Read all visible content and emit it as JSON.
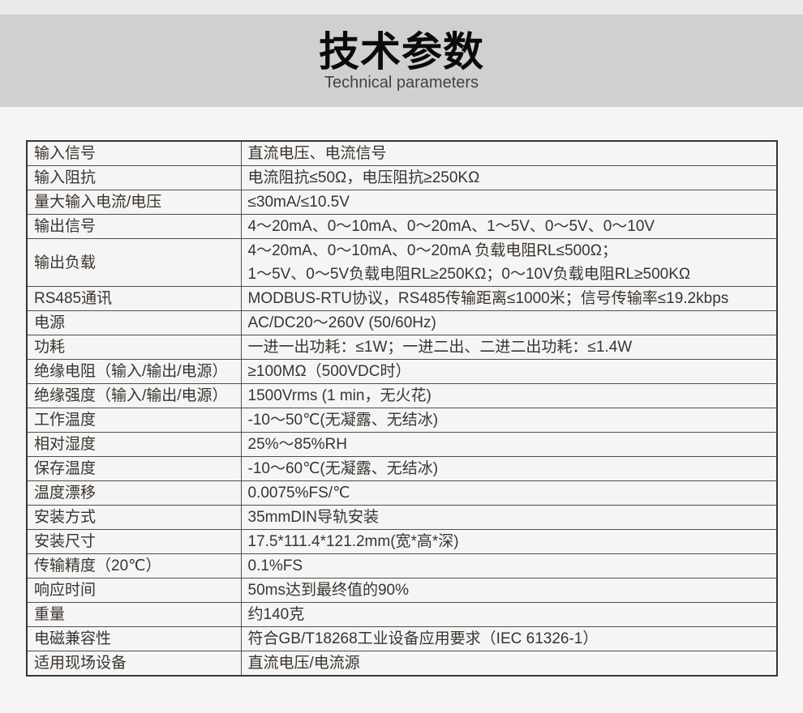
{
  "page": {
    "title": "技术参数",
    "subtitle": "Technical parameters"
  },
  "colors": {
    "page_background": "#f5f5f5",
    "top_strip": "#ebeaea",
    "title_band": "#d1d0d0",
    "title_text": "#0b0b0b",
    "subtitle_text": "#424242",
    "table_border": "#383534",
    "grid_line": "#524d49",
    "cell_text": "#3b342e"
  },
  "spec_table": {
    "rows": [
      {
        "label": "输入信号",
        "value_lines": [
          "直流电压、电流信号"
        ]
      },
      {
        "label": "输入阻抗",
        "value_lines": [
          "电流阻抗≤50Ω，电压阻抗≥250KΩ"
        ]
      },
      {
        "label": "量大输入电流/电压",
        "value_lines": [
          "≤30mA/≤10.5V"
        ]
      },
      {
        "label": "输出信号",
        "value_lines": [
          "4～20mA、0～10mA、0～20mA、1～5V、0～5V、0～10V"
        ]
      },
      {
        "label": "输出负载",
        "value_lines": [
          "4～20mA、0～10mA、0～20mA 负载电阻RL≤500Ω；",
          "1～5V、0～5V负载电阻RL≥250KΩ；0～10V负载电阻RL≥500KΩ"
        ]
      },
      {
        "label": "RS485通讯",
        "value_lines": [
          "MODBUS-RTU协议，RS485传输距离≤1000米；信号传输率≤19.2kbps"
        ]
      },
      {
        "label": "电源",
        "value_lines": [
          "AC/DC20～260V (50/60Hz)"
        ]
      },
      {
        "label": "功耗",
        "value_lines": [
          "一进一出功耗：≤1W；一进二出、二进二出功耗：≤1.4W"
        ]
      },
      {
        "label": "绝缘电阻（输入/输出/电源）",
        "value_lines": [
          "≥100MΩ（500VDC时）"
        ]
      },
      {
        "label": "绝缘强度（输入/输出/电源）",
        "value_lines": [
          "1500Vrms (1 min，无火花)"
        ]
      },
      {
        "label": "工作温度",
        "value_lines": [
          "-10～50℃(无凝露、无结冰)"
        ]
      },
      {
        "label": "相对湿度",
        "value_lines": [
          "25%～85%RH"
        ]
      },
      {
        "label": "保存温度",
        "value_lines": [
          "-10～60℃(无凝露、无结冰)"
        ]
      },
      {
        "label": "温度漂移",
        "value_lines": [
          "0.0075%FS/℃"
        ]
      },
      {
        "label": "安装方式",
        "value_lines": [
          "35mmDIN导轨安装"
        ]
      },
      {
        "label": "安装尺寸",
        "value_lines": [
          "17.5*111.4*121.2mm(宽*高*深)"
        ]
      },
      {
        "label": "传输精度（20℃）",
        "value_lines": [
          "0.1%FS"
        ]
      },
      {
        "label": "响应时间",
        "value_lines": [
          "50ms达到最终值的90%"
        ]
      },
      {
        "label": "重量",
        "value_lines": [
          "约140克"
        ]
      },
      {
        "label": "电磁兼容性",
        "value_lines": [
          "符合GB/T18268工业设备应用要求（IEC 61326-1）"
        ]
      },
      {
        "label": "适用现场设备",
        "value_lines": [
          "直流电压/电流源"
        ]
      }
    ]
  }
}
